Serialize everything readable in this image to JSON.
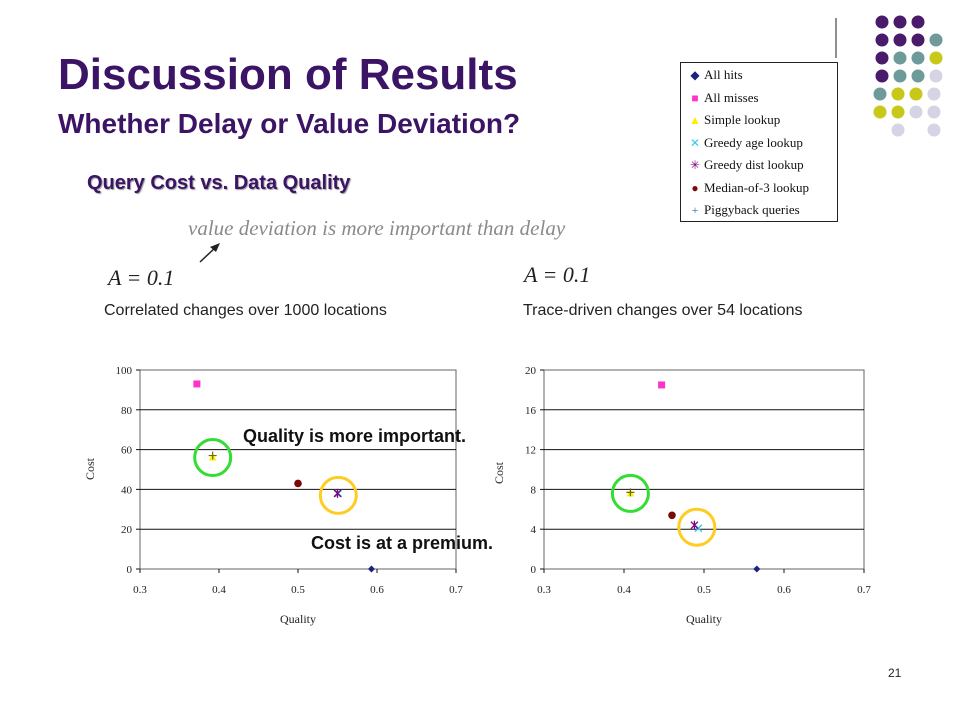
{
  "title": "Discussion of Results",
  "subtitle": "Whether Delay or Value Deviation?",
  "heading": "Query Cost vs. Data Quality",
  "note": "value deviation is more important than delay",
  "left": {
    "a_label": "A = 0.1",
    "caption": "Correlated changes over 1000 locations"
  },
  "right": {
    "a_label": "A = 0.1",
    "caption": "Trace-driven changes over 54 locations"
  },
  "callouts": {
    "quality": "Quality is more important.",
    "cost": "Cost is at a premium."
  },
  "page_number": "21",
  "legend": {
    "items": [
      {
        "label": "All hits",
        "symbol": "◆",
        "color": "#1a237e"
      },
      {
        "label": "All misses",
        "symbol": "■",
        "color": "#ff33cc"
      },
      {
        "label": "Simple lookup",
        "symbol": "▲",
        "color": "#ffee00"
      },
      {
        "label": "Greedy age lookup",
        "symbol": "✕",
        "color": "#33ccee"
      },
      {
        "label": "Greedy dist lookup",
        "symbol": "✳",
        "color": "#800080"
      },
      {
        "label": "Median-of-3 lookup",
        "symbol": "●",
        "color": "#7a0a0a"
      },
      {
        "label": "Piggyback queries",
        "symbol": "+",
        "color": "#2a6fb0"
      }
    ]
  },
  "colors": {
    "title": "#3b1466",
    "highlight_green": "#33dd33",
    "highlight_yellow": "#ffcc22"
  },
  "chart_data": [
    {
      "type": "scatter",
      "title": "",
      "xlabel": "Quality",
      "ylabel": "Cost",
      "xlim": [
        0.3,
        0.7
      ],
      "ylim": [
        0,
        100
      ],
      "xticks": [
        0.3,
        0.4,
        0.5,
        0.6,
        0.7
      ],
      "yticks": [
        0,
        20,
        40,
        60,
        80,
        100
      ],
      "grid": true,
      "series": [
        {
          "name": "All hits",
          "x": [
            0.593
          ],
          "y": [
            0
          ]
        },
        {
          "name": "All misses",
          "x": [
            0.372
          ],
          "y": [
            93
          ]
        },
        {
          "name": "Simple lookup",
          "x": [
            0.392
          ],
          "y": [
            56
          ]
        },
        {
          "name": "Greedy age lookup",
          "x": [
            0.551
          ],
          "y": [
            38
          ]
        },
        {
          "name": "Greedy dist lookup",
          "x": [
            0.55
          ],
          "y": [
            38
          ]
        },
        {
          "name": "Median-of-3 lookup",
          "x": [
            0.5
          ],
          "y": [
            43
          ]
        },
        {
          "name": "Piggyback queries",
          "x": [
            0.392
          ],
          "y": [
            57
          ]
        }
      ],
      "highlights": [
        {
          "x": 0.392,
          "y": 56,
          "color": "green"
        },
        {
          "x": 0.551,
          "y": 37,
          "color": "yellow"
        }
      ]
    },
    {
      "type": "scatter",
      "title": "",
      "xlabel": "Quality",
      "ylabel": "Cost",
      "xlim": [
        0.3,
        0.7
      ],
      "ylim": [
        0,
        20
      ],
      "xticks": [
        0.3,
        0.4,
        0.5,
        0.6,
        0.7
      ],
      "yticks": [
        0,
        4,
        8,
        12,
        16,
        20
      ],
      "grid": true,
      "series": [
        {
          "name": "All hits",
          "x": [
            0.566
          ],
          "y": [
            0
          ]
        },
        {
          "name": "All misses",
          "x": [
            0.447
          ],
          "y": [
            18.5
          ]
        },
        {
          "name": "Simple lookup",
          "x": [
            0.408
          ],
          "y": [
            7.6
          ]
        },
        {
          "name": "Greedy age lookup",
          "x": [
            0.493
          ],
          "y": [
            4.1
          ]
        },
        {
          "name": "Greedy dist lookup",
          "x": [
            0.488
          ],
          "y": [
            4.4
          ]
        },
        {
          "name": "Median-of-3 lookup",
          "x": [
            0.46
          ],
          "y": [
            5.4
          ]
        },
        {
          "name": "Piggyback queries",
          "x": [
            0.408
          ],
          "y": [
            7.7
          ]
        }
      ],
      "highlights": [
        {
          "x": 0.408,
          "y": 7.6,
          "color": "green"
        },
        {
          "x": 0.491,
          "y": 4.2,
          "color": "yellow"
        }
      ]
    }
  ]
}
